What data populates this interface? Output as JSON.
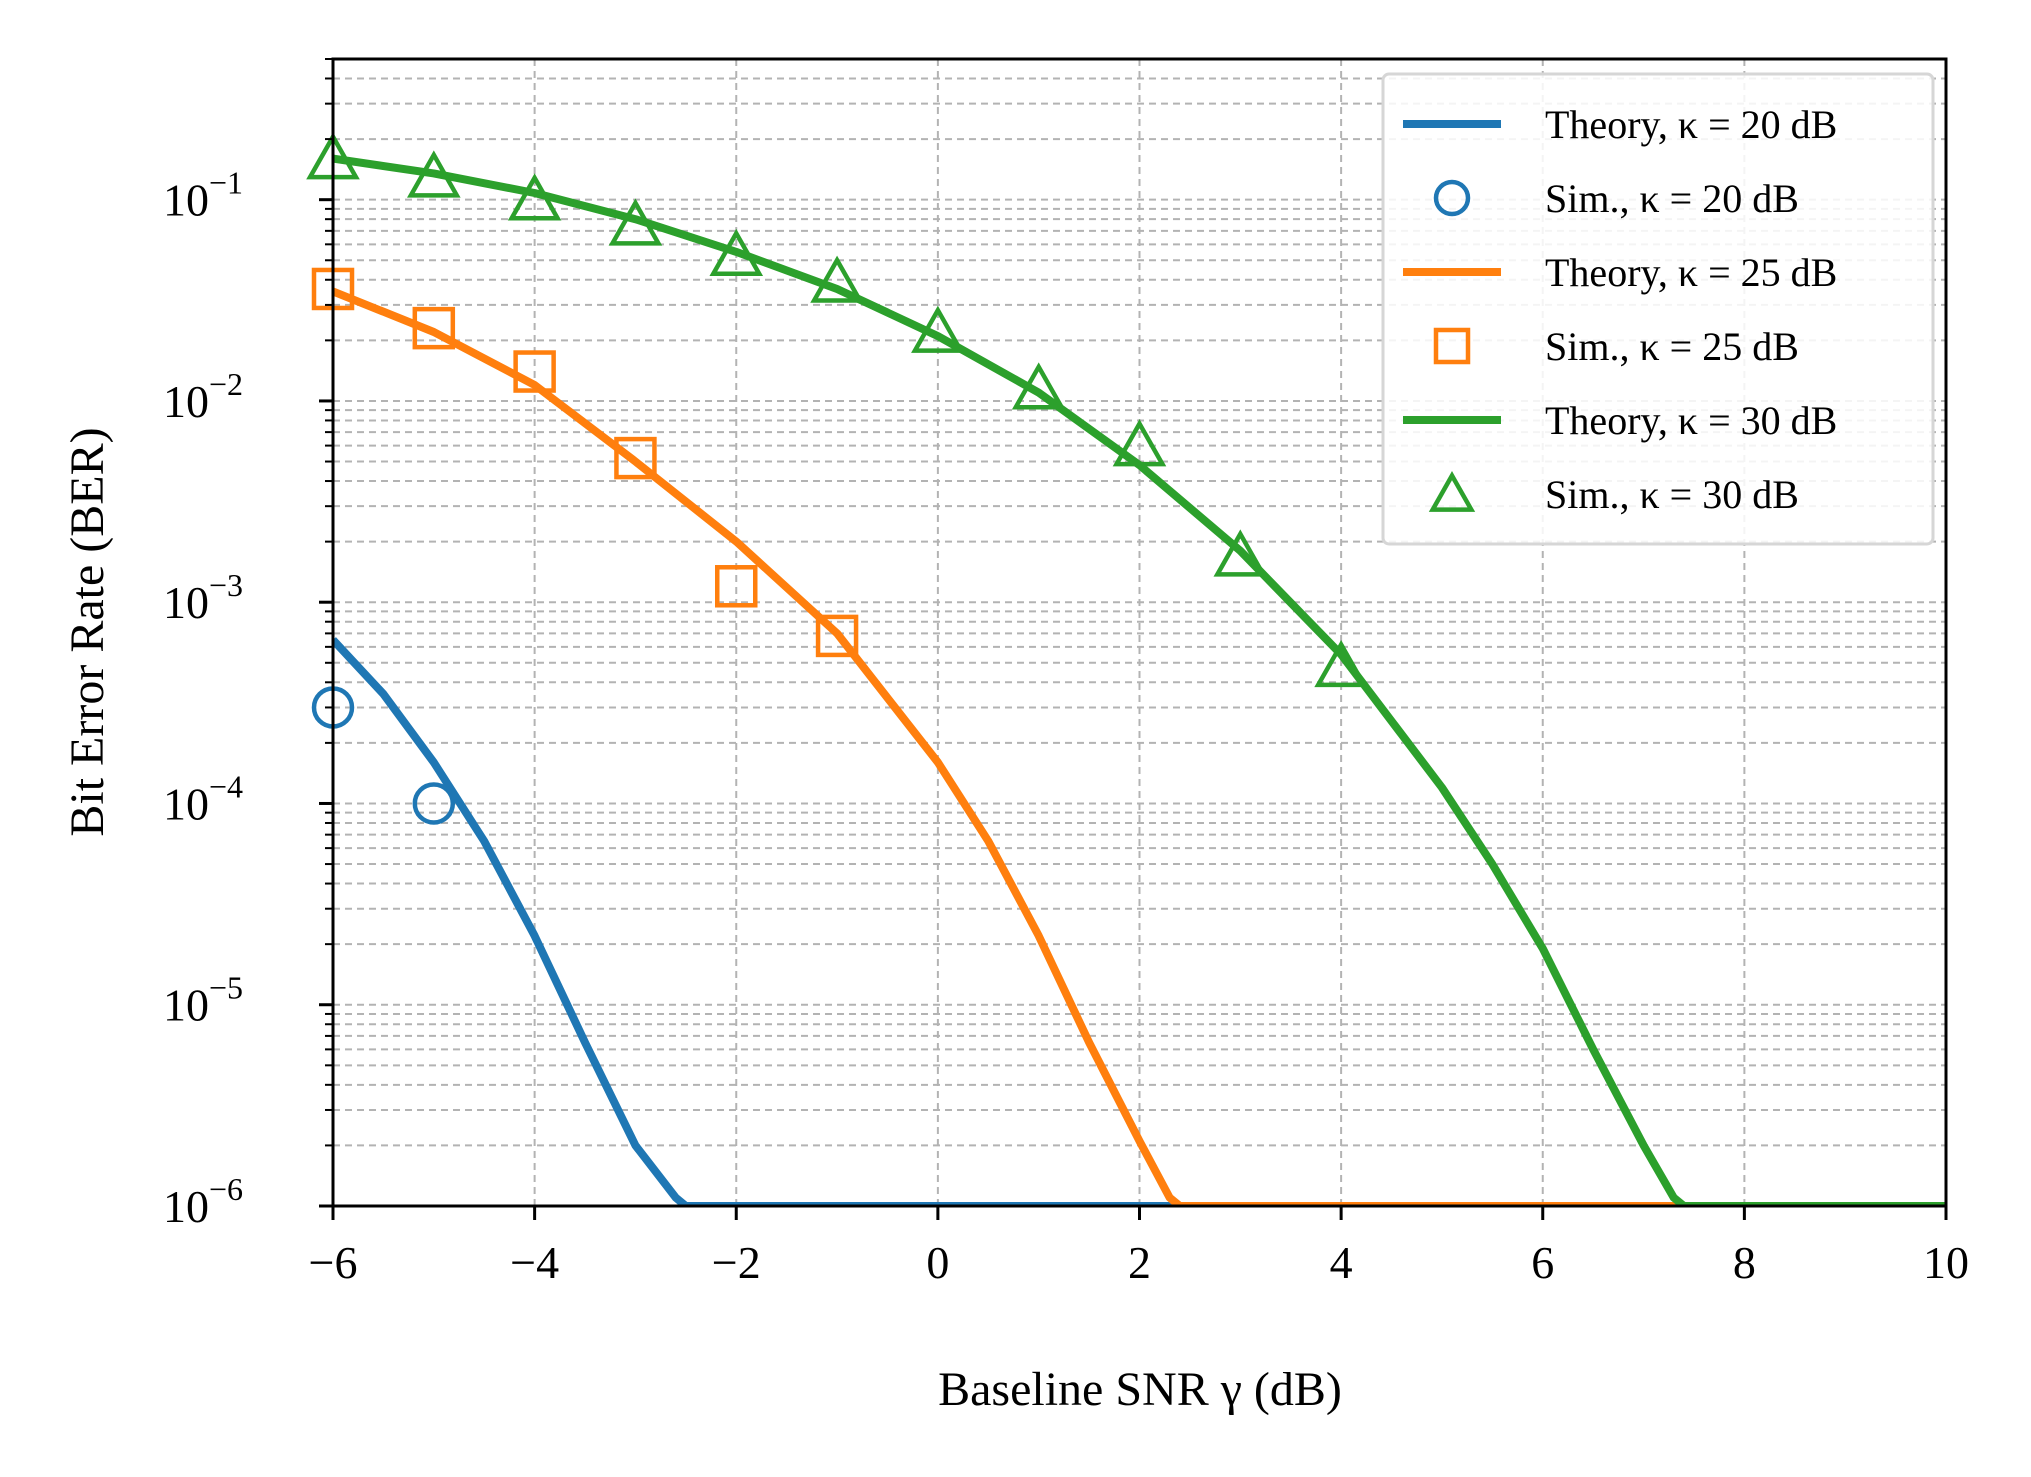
{
  "chart_data": {
    "type": "line",
    "xlabel": "Baseline SNR γ (dB)",
    "ylabel": "Bit Error Rate (BER)",
    "xlim": [
      -6,
      10
    ],
    "ylim": [
      1e-06,
      0.5
    ],
    "yscale": "log",
    "grid": true,
    "legend_position": "top-right",
    "x_ticks": [
      -6,
      -4,
      -2,
      0,
      2,
      4,
      6,
      8,
      10
    ],
    "x_tick_labels": [
      "−6",
      "−4",
      "−2",
      "0",
      "2",
      "4",
      "6",
      "8",
      "10"
    ],
    "y_ticks": [
      1e-06,
      1e-05,
      0.0001,
      0.001,
      0.01,
      0.1
    ],
    "y_tick_labels": [
      {
        "base": "10",
        "exp": "−6"
      },
      {
        "base": "10",
        "exp": "−5"
      },
      {
        "base": "10",
        "exp": "−4"
      },
      {
        "base": "10",
        "exp": "−3"
      },
      {
        "base": "10",
        "exp": "−2"
      },
      {
        "base": "10",
        "exp": "−1"
      }
    ],
    "series": [
      {
        "name": "Theory, κ = 20 dB",
        "kind": "line",
        "color": "#1f77b4",
        "x": [
          -6,
          -5.5,
          -5,
          -4.5,
          -4,
          -3.5,
          -3,
          -2.6,
          -2.5,
          10
        ],
        "y": [
          0.00065,
          0.00035,
          0.00016,
          6.5e-05,
          2.2e-05,
          6.5e-06,
          2e-06,
          1.1e-06,
          1e-06,
          1e-06
        ]
      },
      {
        "name": "Sim., κ = 20 dB",
        "kind": "marker",
        "marker": "circle",
        "color": "#1f77b4",
        "x": [
          -6,
          -5
        ],
        "y": [
          0.0003,
          0.0001
        ]
      },
      {
        "name": "Theory, κ = 25 dB",
        "kind": "line",
        "color": "#ff7f0e",
        "x": [
          -6,
          -5,
          -4,
          -3,
          -2,
          -1,
          0,
          0.5,
          1,
          1.5,
          2,
          2.3,
          2.4,
          10
        ],
        "y": [
          0.035,
          0.022,
          0.012,
          0.005,
          0.002,
          0.0007,
          0.00016,
          6.5e-05,
          2.2e-05,
          6.5e-06,
          2.1e-06,
          1.1e-06,
          1e-06,
          1e-06
        ]
      },
      {
        "name": "Sim., κ = 25 dB",
        "kind": "marker",
        "marker": "square",
        "color": "#ff7f0e",
        "x": [
          -6,
          -5,
          -4,
          -3,
          -2,
          -1
        ],
        "y": [
          0.036,
          0.023,
          0.014,
          0.0052,
          0.0012,
          0.00068
        ]
      },
      {
        "name": "Theory, κ = 30 dB",
        "kind": "line",
        "color": "#2ca02c",
        "x": [
          -6,
          -5,
          -4,
          -3,
          -2,
          -1,
          0,
          1,
          2,
          3,
          4,
          5,
          5.5,
          6,
          6.5,
          7,
          7.3,
          7.4,
          10
        ],
        "y": [
          0.16,
          0.135,
          0.108,
          0.08,
          0.055,
          0.036,
          0.021,
          0.011,
          0.0048,
          0.0018,
          0.00055,
          0.00012,
          5e-05,
          1.9e-05,
          6e-06,
          2e-06,
          1.1e-06,
          1e-06,
          1e-06
        ]
      },
      {
        "name": "Sim., κ = 30 dB",
        "kind": "marker",
        "marker": "triangle",
        "color": "#2ca02c",
        "x": [
          -6,
          -5,
          -4,
          -3,
          -2,
          -1,
          0,
          1,
          2,
          3,
          4
        ],
        "y": [
          0.16,
          0.13,
          0.1,
          0.075,
          0.053,
          0.039,
          0.022,
          0.0115,
          0.006,
          0.0017,
          0.00048
        ]
      }
    ]
  }
}
